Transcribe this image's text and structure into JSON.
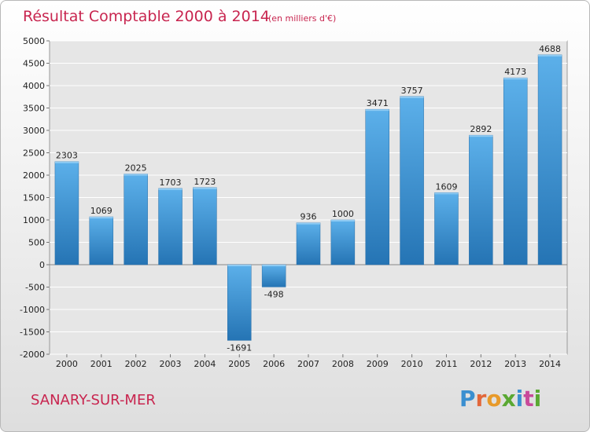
{
  "chart_data": {
    "type": "bar",
    "title": "Résultat Comptable 2000 à 2014",
    "subtitle": "(en milliers d'€)",
    "categories": [
      "2000",
      "2001",
      "2002",
      "2003",
      "2004",
      "2005",
      "2006",
      "2007",
      "2008",
      "2009",
      "2010",
      "2011",
      "2012",
      "2013",
      "2014"
    ],
    "values": [
      2303,
      1069,
      2025,
      1703,
      1723,
      -1691,
      -498,
      936,
      1000,
      3471,
      3757,
      1609,
      2892,
      4173,
      4688
    ],
    "value_labels": [
      "2303",
      "1069",
      "2025",
      "1703",
      "1723",
      "-1691",
      "-498",
      "936",
      "1000",
      "3471",
      "3757",
      "1609",
      "2892",
      "4173",
      "4688"
    ],
    "ylim": [
      -2000,
      5000
    ],
    "yticks": [
      5000,
      4500,
      4000,
      3500,
      3000,
      2500,
      2000,
      1500,
      1000,
      500,
      0,
      -500,
      -1000,
      -1500,
      -2000
    ],
    "xlabel": "",
    "ylabel": "",
    "grid": true,
    "bar_color": "#3d94d6",
    "bar_color_dark": "#2a78b8"
  },
  "footer": {
    "city": "SANARY-SUR-MER",
    "logo_letters": [
      "P",
      "r",
      "o",
      "x",
      "i",
      "t",
      "i"
    ],
    "logo_colors": [
      "#3a8fd0",
      "#e2673a",
      "#e89a2a",
      "#5aa832",
      "#3a8fd0",
      "#c84a9a",
      "#5aa832"
    ]
  }
}
